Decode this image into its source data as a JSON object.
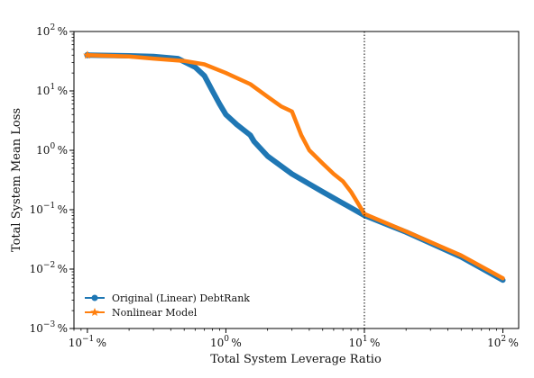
{
  "chart_data": {
    "type": "line",
    "xlabel": "Total System Leverage Ratio",
    "ylabel": "Total System Mean Loss",
    "xscale": "log",
    "yscale": "log",
    "xlim": [
      0.08,
      130
    ],
    "ylim": [
      0.001,
      100
    ],
    "x_ticks": [
      0.1,
      1,
      10,
      100
    ],
    "x_tick_labels": [
      [
        "10",
        "−1",
        "%"
      ],
      [
        "10",
        "0",
        "%"
      ],
      [
        "10",
        "1",
        "%"
      ],
      [
        "10",
        "2",
        "%"
      ]
    ],
    "y_ticks": [
      0.001,
      0.01,
      0.1,
      1,
      10,
      100
    ],
    "y_tick_labels": [
      [
        "10",
        "−3",
        "%"
      ],
      [
        "10",
        "−2",
        "%"
      ],
      [
        "10",
        "−1",
        "%"
      ],
      [
        "10",
        "0",
        "%"
      ],
      [
        "10",
        "1",
        "%"
      ],
      [
        "10",
        "2",
        "%"
      ]
    ],
    "vline_x": 10,
    "grid": false,
    "legend_position": "lower-left",
    "series": [
      {
        "name": "Original (Linear) DebtRank",
        "color": "#1f77b4",
        "marker": "circle",
        "x": [
          0.1,
          0.2,
          0.3,
          0.45,
          0.6,
          0.7,
          0.8,
          0.9,
          1.0,
          1.2,
          1.5,
          1.6,
          2.0,
          3.0,
          5.0,
          10,
          20,
          50,
          100
        ],
        "y": [
          40,
          39,
          38,
          35,
          25,
          18,
          10,
          6,
          4,
          2.7,
          1.8,
          1.4,
          0.8,
          0.4,
          0.2,
          0.08,
          0.042,
          0.016,
          0.0065
        ]
      },
      {
        "name": "Nonlinear Model",
        "color": "#ff7f0e",
        "marker": "star",
        "x": [
          0.1,
          0.2,
          0.3,
          0.5,
          0.7,
          1.0,
          1.5,
          2.0,
          2.5,
          3.0,
          3.5,
          4.0,
          5.0,
          6.0,
          7.0,
          8.0,
          10,
          20,
          50,
          100
        ],
        "y": [
          40,
          38,
          35,
          32,
          28,
          20,
          13,
          8,
          5.5,
          4.5,
          1.8,
          1.0,
          0.6,
          0.4,
          0.3,
          0.2,
          0.085,
          0.043,
          0.017,
          0.007
        ]
      }
    ]
  }
}
